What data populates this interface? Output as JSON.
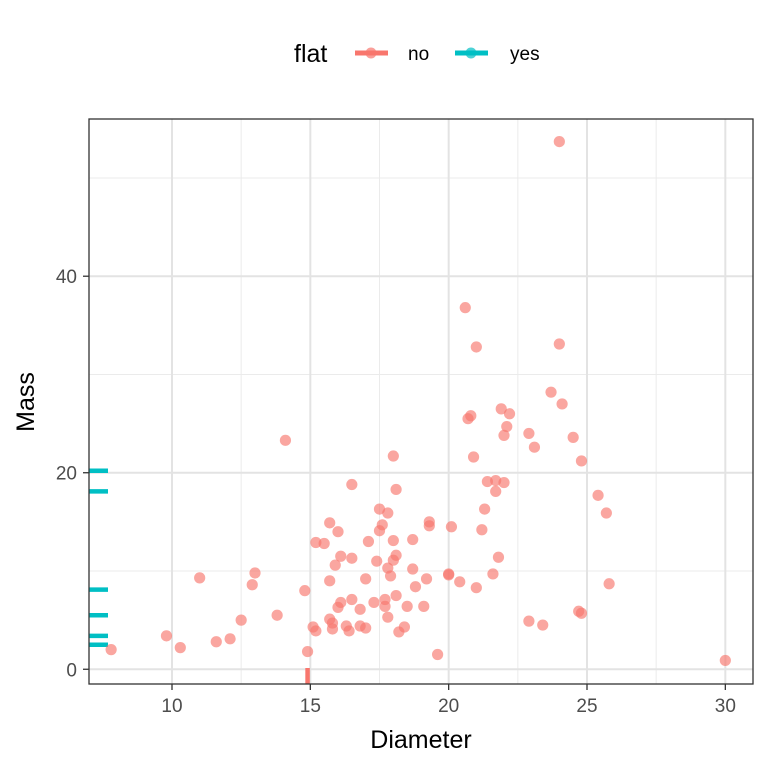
{
  "chart_data": {
    "type": "scatter",
    "xlabel": "Diameter",
    "ylabel": "Mass",
    "xlim": [
      7,
      31
    ],
    "ylim": [
      -1.5,
      56
    ],
    "x_ticks": [
      10,
      15,
      20,
      25,
      30
    ],
    "y_ticks": [
      0,
      20,
      40
    ],
    "grid": true,
    "legend": {
      "title": "flat",
      "position": "top",
      "entries": [
        "no",
        "yes"
      ]
    },
    "colors": {
      "no": "#F8766D",
      "yes": "#00BFC4"
    },
    "series": [
      {
        "name": "no",
        "points": [
          [
            7.8,
            2.0
          ],
          [
            9.8,
            3.4
          ],
          [
            10.3,
            2.2
          ],
          [
            11.0,
            9.3
          ],
          [
            11.6,
            2.8
          ],
          [
            12.1,
            3.1
          ],
          [
            12.5,
            5.0
          ],
          [
            12.9,
            8.6
          ],
          [
            13.0,
            9.8
          ],
          [
            13.8,
            5.5
          ],
          [
            14.1,
            23.3
          ],
          [
            14.8,
            8.0
          ],
          [
            14.9,
            1.8
          ],
          [
            15.1,
            4.3
          ],
          [
            15.2,
            3.9
          ],
          [
            15.2,
            12.9
          ],
          [
            15.5,
            12.8
          ],
          [
            15.7,
            14.9
          ],
          [
            15.7,
            9.0
          ],
          [
            15.7,
            5.1
          ],
          [
            15.8,
            4.7
          ],
          [
            15.8,
            4.1
          ],
          [
            15.9,
            10.6
          ],
          [
            16.0,
            14.0
          ],
          [
            16.0,
            6.3
          ],
          [
            16.1,
            6.8
          ],
          [
            16.1,
            11.5
          ],
          [
            16.3,
            4.4
          ],
          [
            16.4,
            3.9
          ],
          [
            16.5,
            11.3
          ],
          [
            16.5,
            18.8
          ],
          [
            16.5,
            7.1
          ],
          [
            16.8,
            6.1
          ],
          [
            16.8,
            4.4
          ],
          [
            17.0,
            4.2
          ],
          [
            17.0,
            9.2
          ],
          [
            17.1,
            13.0
          ],
          [
            17.3,
            6.8
          ],
          [
            17.4,
            11.0
          ],
          [
            17.5,
            14.1
          ],
          [
            17.5,
            16.3
          ],
          [
            17.6,
            14.7
          ],
          [
            17.7,
            7.1
          ],
          [
            17.7,
            6.4
          ],
          [
            17.8,
            5.3
          ],
          [
            17.8,
            10.3
          ],
          [
            17.8,
            15.9
          ],
          [
            17.9,
            9.5
          ],
          [
            18.0,
            11.1
          ],
          [
            18.0,
            21.7
          ],
          [
            18.0,
            13.1
          ],
          [
            18.1,
            11.6
          ],
          [
            18.1,
            18.3
          ],
          [
            18.1,
            7.5
          ],
          [
            18.2,
            3.8
          ],
          [
            18.4,
            4.3
          ],
          [
            18.5,
            6.4
          ],
          [
            18.7,
            10.2
          ],
          [
            18.7,
            13.2
          ],
          [
            18.8,
            8.4
          ],
          [
            19.1,
            6.4
          ],
          [
            19.2,
            9.2
          ],
          [
            19.3,
            14.6
          ],
          [
            19.3,
            15.0
          ],
          [
            19.6,
            1.5
          ],
          [
            20.0,
            9.7
          ],
          [
            20.0,
            9.6
          ],
          [
            20.1,
            14.5
          ],
          [
            20.4,
            8.9
          ],
          [
            20.6,
            36.8
          ],
          [
            20.7,
            25.5
          ],
          [
            20.8,
            25.8
          ],
          [
            20.9,
            21.6
          ],
          [
            21.0,
            32.8
          ],
          [
            21.0,
            8.3
          ],
          [
            21.2,
            14.2
          ],
          [
            21.3,
            16.3
          ],
          [
            21.4,
            19.1
          ],
          [
            21.6,
            9.7
          ],
          [
            21.7,
            19.2
          ],
          [
            21.7,
            18.1
          ],
          [
            21.8,
            11.4
          ],
          [
            21.9,
            26.5
          ],
          [
            22.0,
            23.8
          ],
          [
            22.0,
            19.0
          ],
          [
            22.1,
            24.7
          ],
          [
            22.2,
            26.0
          ],
          [
            22.9,
            24.0
          ],
          [
            22.9,
            4.9
          ],
          [
            23.1,
            22.6
          ],
          [
            23.4,
            4.5
          ],
          [
            23.7,
            28.2
          ],
          [
            24.0,
            53.7
          ],
          [
            24.0,
            33.1
          ],
          [
            24.1,
            27.0
          ],
          [
            24.5,
            23.6
          ],
          [
            24.7,
            5.9
          ],
          [
            24.8,
            21.2
          ],
          [
            24.8,
            5.7
          ],
          [
            25.4,
            17.7
          ],
          [
            25.7,
            15.9
          ],
          [
            25.8,
            8.7
          ],
          [
            30.0,
            0.9
          ]
        ]
      },
      {
        "name": "yes",
        "rug_x": [
          14.9
        ],
        "rug_y": [
          2.5,
          3.4,
          5.5,
          8.1,
          18.1,
          20.2
        ]
      }
    ]
  }
}
